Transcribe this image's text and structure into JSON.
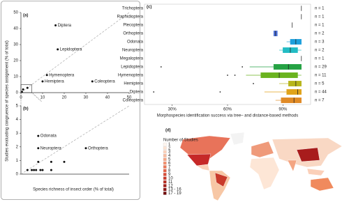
{
  "chart_data": [
    {
      "type": "scatter",
      "label": "(a)",
      "x_label": "Species richness of insect order (% of total)",
      "y_label": "Studies evaluating congruence of species assignment (% of total)",
      "xlim": [
        0,
        50
      ],
      "ylim": [
        0,
        50
      ],
      "xticks": [
        0,
        10,
        20,
        30,
        40,
        50
      ],
      "yticks": [
        0,
        10,
        20,
        30,
        40,
        50
      ],
      "x": [
        16,
        17,
        12,
        10,
        33,
        1,
        3,
        0.5
      ],
      "values": [
        42,
        27,
        11,
        7,
        7,
        2,
        3,
        0.5
      ],
      "point_labels": [
        "Diptera",
        "Lepidoptera",
        "Hymenoptera",
        "Hemiptera",
        "Coleoptera",
        null,
        null,
        null
      ],
      "color": "#111111"
    },
    {
      "type": "scatter",
      "label": "(b)",
      "xlim": [
        0,
        5
      ],
      "ylim": [
        0,
        5
      ],
      "yticks": [
        0,
        1,
        2,
        3,
        4,
        5
      ],
      "x": [
        0.8,
        0.8,
        3,
        0.3,
        0.5,
        0.6,
        0.7,
        0.9,
        1.0,
        1.4,
        0.8,
        1.4,
        2.0
      ],
      "values": [
        2.8,
        1.9,
        1.9,
        0.3,
        0.3,
        0.3,
        0.3,
        0.3,
        0.3,
        0.3,
        0.9,
        0.9,
        0.9
      ],
      "point_labels": [
        "Odonata",
        "Neuroptera",
        "Orthoptera",
        null,
        null,
        null,
        null,
        null,
        null,
        null,
        null,
        null,
        null
      ],
      "color": "#111111"
    },
    {
      "type": "box",
      "label": "(c)",
      "x_label": "Morphospecies identification success via tree– and distance-based methods",
      "xlim": [
        15,
        105
      ],
      "xticks": [
        {
          "value": 30,
          "label": "30%"
        },
        {
          "value": 60,
          "label": "60%"
        },
        {
          "value": 90,
          "label": "90%"
        }
      ],
      "categories": [
        "Trichoptera",
        "Raphidioptera",
        "Plecoptera",
        "Orthoptera",
        "Odonata",
        "Neuroptera",
        "Megaloptera",
        "Lepidoptera",
        "Hymenoptera",
        "Hemiptera",
        "Diptera",
        "Coleoptera"
      ],
      "n_labels": [
        "n = 1",
        "n = 1",
        "n = 1",
        "n = 2",
        "n = 3",
        "n = 2",
        "n = 1",
        "n = 29",
        "n = 11",
        "n = 5",
        "n = 44",
        "n = 7"
      ],
      "min": [
        null,
        null,
        null,
        null,
        92,
        88,
        null,
        72,
        70,
        88,
        80,
        86
      ],
      "q1": [
        null,
        null,
        null,
        85,
        94,
        90,
        null,
        85,
        78,
        93,
        92,
        89
      ],
      "median": [
        100,
        100,
        95,
        86,
        97,
        94,
        100,
        93,
        88,
        97,
        98,
        96
      ],
      "q3": [
        null,
        null,
        null,
        87,
        100,
        98,
        null,
        100,
        98,
        100,
        100,
        100
      ],
      "max": [
        null,
        null,
        null,
        null,
        100,
        100,
        null,
        100,
        100,
        100,
        100,
        100
      ],
      "outliers": [
        [],
        [],
        [],
        [],
        [],
        [],
        [],
        [
          24,
          68
        ],
        [
          60,
          64
        ],
        [
          74
        ],
        [
          20,
          56
        ],
        []
      ],
      "colors": [
        "#333333",
        "#333333",
        "#333333",
        "#4a6fd6",
        "#1ea0dc",
        "#22bcc4",
        "#333333",
        "#25a244",
        "#6ab31f",
        "#b7b51c",
        "#e0a31a",
        "#e08a26"
      ]
    },
    {
      "type": "map",
      "label": "(d)",
      "legend_title": "Number of Studies",
      "legend": [
        {
          "label": "1",
          "color": "#fff5ee"
        },
        {
          "label": "2",
          "color": "#fde3d3"
        },
        {
          "label": "3",
          "color": "#fbd0b9"
        },
        {
          "label": "4",
          "color": "#f9bb9f"
        },
        {
          "label": "5",
          "color": "#f6a585"
        },
        {
          "label": "6",
          "color": "#f28f6d"
        },
        {
          "label": "7",
          "color": "#ec7858"
        },
        {
          "label": "8",
          "color": "#e36146"
        },
        {
          "label": "9",
          "color": "#d84c37"
        },
        {
          "label": "10",
          "color": "#c93a2b"
        },
        {
          "label": "11",
          "color": "#b72c22"
        },
        {
          "label": "12",
          "color": "#a3201b"
        },
        {
          "label": "13 - 16",
          "color": "#8c1515"
        },
        {
          "label": "17 - 19",
          "color": "#700c0c"
        }
      ]
    }
  ]
}
